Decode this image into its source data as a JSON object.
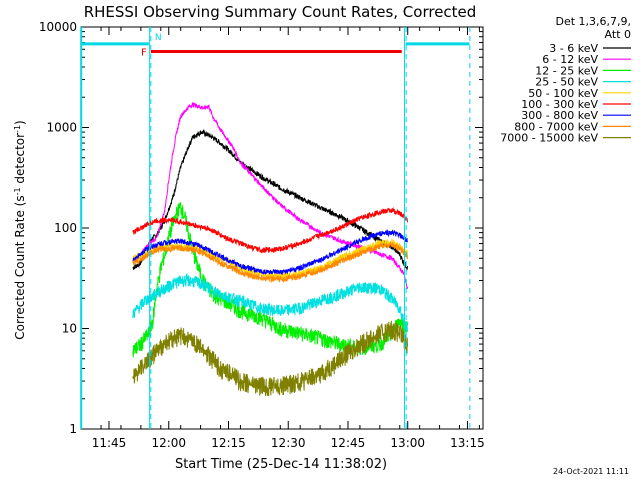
{
  "chart_data": {
    "type": "line",
    "title": "RHESSI Observing Summary Count Rates, Corrected",
    "xlabel": "Start Time (25-Dec-14 11:38:02)",
    "ylabel": "Corrected Count Rate (s⁻¹ detector⁻¹)",
    "y_scale": "log",
    "ylim": [
      1,
      10000
    ],
    "xlim_minutes_since_1138": [
      -0.03,
      100.9
    ],
    "x_ticks": [
      {
        "label": "11:45",
        "min": 7
      },
      {
        "label": "12:00",
        "min": 22
      },
      {
        "label": "12:15",
        "min": 37
      },
      {
        "label": "12:30",
        "min": 52
      },
      {
        "label": "12:45",
        "min": 67
      },
      {
        "label": "13:00",
        "min": 82
      },
      {
        "label": "13:15",
        "min": 97
      }
    ],
    "y_ticks": [
      {
        "label": "1",
        "value": 1
      },
      {
        "label": "10",
        "value": 10
      },
      {
        "label": "100",
        "value": 100
      },
      {
        "label": "1000",
        "value": 1000
      },
      {
        "label": "10000",
        "value": 10000
      }
    ],
    "legend_header": [
      "Det 1,3,6,7,9,",
      "Att 0"
    ],
    "legend_position": "top-right, outside plot",
    "series": [
      {
        "name": "3 - 6 keV",
        "color": "#000000",
        "x": [
          13,
          15,
          16,
          17,
          18,
          19,
          21,
          23,
          25,
          27,
          28,
          30,
          31,
          33,
          35,
          38,
          40,
          45,
          50,
          55,
          60,
          65,
          70,
          75,
          78,
          80,
          81,
          82
        ],
        "y": [
          40,
          45,
          60,
          70,
          80,
          85,
          120,
          200,
          400,
          650,
          800,
          900,
          880,
          800,
          700,
          550,
          450,
          330,
          250,
          200,
          160,
          130,
          100,
          75,
          65,
          55,
          45,
          40
        ]
      },
      {
        "name": "6 - 12 keV",
        "color": "#ff00ff",
        "x": [
          13,
          15,
          16,
          17,
          18,
          19,
          21,
          22,
          23,
          24,
          25,
          27,
          28,
          30,
          31,
          32,
          33,
          35,
          38,
          40,
          45,
          50,
          55,
          60,
          65,
          70,
          75,
          78,
          80,
          81,
          82
        ],
        "y": [
          45,
          55,
          62,
          68,
          75,
          80,
          150,
          300,
          550,
          900,
          1300,
          1600,
          1700,
          1600,
          1550,
          1650,
          1300,
          950,
          650,
          450,
          270,
          170,
          120,
          90,
          75,
          65,
          55,
          50,
          40,
          35,
          25
        ]
      },
      {
        "name": "12 - 25 keV",
        "color": "#00ee00",
        "x": [
          13,
          15,
          16,
          17,
          18,
          19,
          20,
          21,
          22,
          23,
          24,
          25,
          26,
          27,
          28,
          29,
          30,
          31,
          32,
          33,
          35,
          38,
          40,
          45,
          50,
          55,
          60,
          65,
          70,
          75,
          78,
          80,
          81,
          82
        ],
        "y": [
          6,
          7,
          8,
          9,
          12,
          25,
          40,
          55,
          80,
          110,
          140,
          165,
          130,
          90,
          60,
          45,
          35,
          28,
          25,
          22,
          20,
          17,
          15,
          13,
          10,
          9,
          8,
          7,
          6.5,
          7,
          9,
          12,
          11,
          10
        ]
      },
      {
        "name": "25 - 50 keV",
        "color": "#00e0e0",
        "x": [
          13,
          15,
          16,
          17,
          18,
          19,
          21,
          23,
          25,
          27,
          29,
          31,
          33,
          35,
          38,
          40,
          45,
          50,
          55,
          60,
          65,
          70,
          75,
          78,
          80,
          81,
          82
        ],
        "y": [
          14,
          17,
          19,
          20,
          21,
          23,
          25,
          28,
          30,
          30,
          29,
          27,
          24,
          22,
          20,
          19,
          16,
          15,
          16,
          19,
          22,
          26,
          25,
          20,
          16,
          12,
          10
        ]
      },
      {
        "name": "50 - 100 keV",
        "color": "#ffd000",
        "x": [
          13,
          15,
          16,
          17,
          18,
          19,
          21,
          23,
          25,
          27,
          29,
          31,
          33,
          35,
          38,
          40,
          45,
          50,
          55,
          60,
          65,
          70,
          75,
          78,
          80,
          81,
          82
        ],
        "y": [
          50,
          53,
          55,
          58,
          60,
          63,
          65,
          66,
          66,
          65,
          63,
          60,
          55,
          50,
          45,
          40,
          35,
          33,
          35,
          40,
          50,
          60,
          70,
          72,
          65,
          60,
          55
        ]
      },
      {
        "name": "100 - 300 keV",
        "color": "#ff0000",
        "x": [
          13,
          15,
          16,
          17,
          18,
          19,
          21,
          23,
          25,
          27,
          29,
          31,
          33,
          35,
          38,
          40,
          45,
          50,
          55,
          60,
          65,
          70,
          75,
          78,
          80,
          81,
          82
        ],
        "y": [
          90,
          100,
          105,
          110,
          115,
          118,
          120,
          120,
          115,
          110,
          105,
          100,
          95,
          85,
          75,
          70,
          60,
          62,
          70,
          85,
          100,
          125,
          145,
          150,
          140,
          130,
          120
        ]
      },
      {
        "name": "300 - 800 keV",
        "color": "#0000ff",
        "x": [
          13,
          15,
          16,
          17,
          18,
          19,
          21,
          23,
          25,
          27,
          29,
          31,
          33,
          35,
          38,
          40,
          45,
          50,
          55,
          60,
          65,
          70,
          75,
          78,
          80,
          81,
          82
        ],
        "y": [
          48,
          55,
          60,
          63,
          66,
          68,
          72,
          74,
          74,
          72,
          68,
          63,
          58,
          52,
          46,
          42,
          37,
          36,
          40,
          48,
          60,
          75,
          88,
          90,
          85,
          78,
          75
        ]
      },
      {
        "name": "800 - 7000 keV",
        "color": "#ff8800",
        "x": [
          13,
          15,
          16,
          17,
          18,
          19,
          21,
          23,
          25,
          27,
          29,
          31,
          33,
          35,
          38,
          40,
          45,
          50,
          55,
          60,
          65,
          70,
          75,
          78,
          80,
          81,
          82
        ],
        "y": [
          45,
          48,
          52,
          55,
          58,
          60,
          62,
          63,
          63,
          62,
          60,
          55,
          50,
          45,
          40,
          36,
          32,
          31,
          33,
          38,
          46,
          56,
          66,
          68,
          62,
          57,
          52
        ]
      },
      {
        "name": "7000 - 15000 keV",
        "color": "#808000",
        "x": [
          13,
          15,
          16,
          17,
          18,
          19,
          21,
          23,
          25,
          27,
          29,
          31,
          33,
          35,
          38,
          40,
          45,
          50,
          55,
          60,
          65,
          70,
          75,
          78,
          80,
          81,
          82
        ],
        "y": [
          3.5,
          4,
          4.5,
          5,
          5.5,
          6,
          7,
          8,
          8.5,
          8,
          7,
          6,
          5,
          4,
          3.5,
          3,
          2.7,
          2.7,
          3,
          3.5,
          5,
          7,
          9,
          10,
          9,
          8,
          7
        ]
      }
    ],
    "annotations": {
      "flare_bar": {
        "label": "F",
        "color": "#ee0000",
        "x_start": 17.5,
        "x_end": 80.5,
        "y": 5700
      },
      "night_bars": {
        "label": "N",
        "color": "#00d8e8",
        "y": 6800,
        "segments": [
          [
            0,
            17
          ],
          [
            81.5,
            97.5
          ]
        ]
      },
      "markers_solid": [
        17.2,
        81.2
      ],
      "markers_dashed": [
        17.5,
        81.6,
        97.6
      ]
    },
    "footer_timestamp": "24-Oct-2021 11:11"
  }
}
